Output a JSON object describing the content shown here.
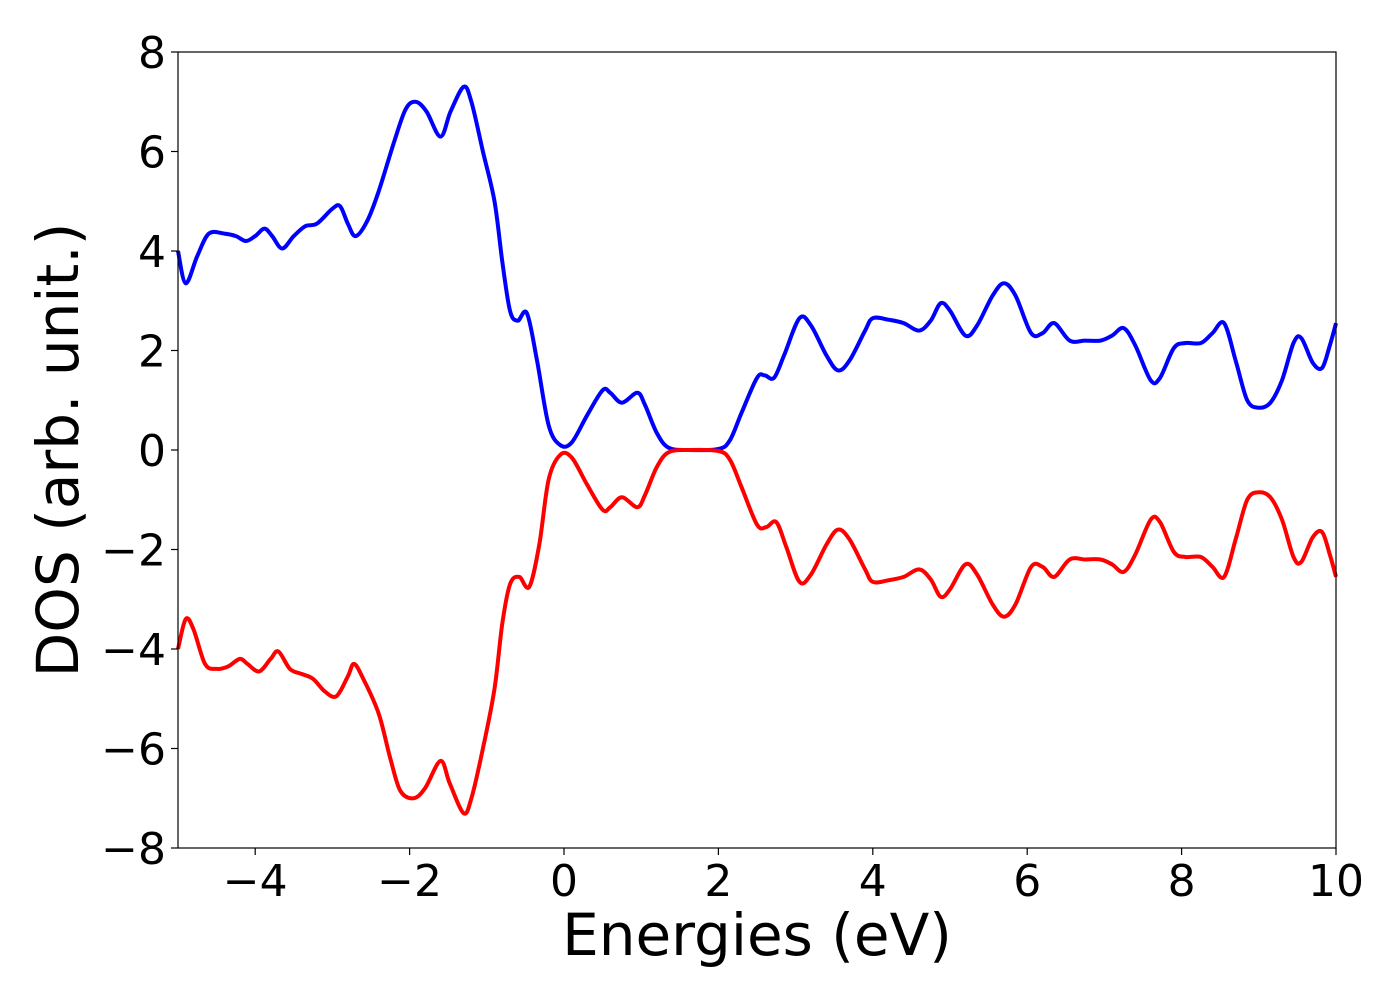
{
  "chart_data": {
    "type": "line",
    "title": "",
    "xlabel": "Energies (eV)",
    "ylabel": "DOS (arb. unit.)",
    "xlim": [
      -5,
      10
    ],
    "ylim": [
      -8,
      8
    ],
    "xticks": [
      -4,
      -2,
      0,
      2,
      4,
      6,
      8,
      10
    ],
    "xtick_labels": [
      "−4",
      "−2",
      "0",
      "2",
      "4",
      "6",
      "8",
      "10"
    ],
    "yticks": [
      -8,
      -6,
      -4,
      -2,
      0,
      2,
      4,
      6,
      8
    ],
    "ytick_labels": [
      "−8",
      "−6",
      "−4",
      "−2",
      "0",
      "2",
      "4",
      "6",
      "8"
    ],
    "grid": false,
    "legend": "none",
    "series": [
      {
        "color": "#0000ff",
        "points": [
          [
            -5.0,
            4.0
          ],
          [
            -4.9,
            3.35
          ],
          [
            -4.75,
            3.9
          ],
          [
            -4.6,
            4.35
          ],
          [
            -4.4,
            4.35
          ],
          [
            -4.25,
            4.3
          ],
          [
            -4.12,
            4.2
          ],
          [
            -4.0,
            4.3
          ],
          [
            -3.88,
            4.45
          ],
          [
            -3.78,
            4.3
          ],
          [
            -3.65,
            4.05
          ],
          [
            -3.5,
            4.3
          ],
          [
            -3.35,
            4.5
          ],
          [
            -3.2,
            4.55
          ],
          [
            -3.0,
            4.85
          ],
          [
            -2.9,
            4.9
          ],
          [
            -2.8,
            4.55
          ],
          [
            -2.7,
            4.3
          ],
          [
            -2.55,
            4.6
          ],
          [
            -2.4,
            5.2
          ],
          [
            -2.2,
            6.2
          ],
          [
            -2.05,
            6.85
          ],
          [
            -1.92,
            7.0
          ],
          [
            -1.78,
            6.8
          ],
          [
            -1.6,
            6.3
          ],
          [
            -1.47,
            6.8
          ],
          [
            -1.3,
            7.3
          ],
          [
            -1.2,
            7.0
          ],
          [
            -1.05,
            6.0
          ],
          [
            -0.9,
            5.0
          ],
          [
            -0.8,
            3.8
          ],
          [
            -0.7,
            2.8
          ],
          [
            -0.6,
            2.6
          ],
          [
            -0.48,
            2.75
          ],
          [
            -0.35,
            1.8
          ],
          [
            -0.2,
            0.5
          ],
          [
            -0.05,
            0.1
          ],
          [
            0.1,
            0.15
          ],
          [
            0.3,
            0.7
          ],
          [
            0.5,
            1.2
          ],
          [
            0.6,
            1.15
          ],
          [
            0.75,
            0.95
          ],
          [
            0.95,
            1.15
          ],
          [
            1.05,
            0.9
          ],
          [
            1.2,
            0.35
          ],
          [
            1.35,
            0.05
          ],
          [
            1.6,
            0.0
          ],
          [
            2.0,
            0.02
          ],
          [
            2.15,
            0.2
          ],
          [
            2.3,
            0.75
          ],
          [
            2.5,
            1.45
          ],
          [
            2.6,
            1.5
          ],
          [
            2.72,
            1.45
          ],
          [
            2.85,
            1.9
          ],
          [
            3.05,
            2.65
          ],
          [
            3.2,
            2.5
          ],
          [
            3.4,
            1.9
          ],
          [
            3.55,
            1.6
          ],
          [
            3.7,
            1.8
          ],
          [
            3.9,
            2.4
          ],
          [
            4.0,
            2.65
          ],
          [
            4.2,
            2.62
          ],
          [
            4.4,
            2.55
          ],
          [
            4.6,
            2.4
          ],
          [
            4.75,
            2.6
          ],
          [
            4.88,
            2.95
          ],
          [
            5.0,
            2.8
          ],
          [
            5.2,
            2.3
          ],
          [
            5.35,
            2.5
          ],
          [
            5.55,
            3.1
          ],
          [
            5.7,
            3.35
          ],
          [
            5.85,
            3.1
          ],
          [
            6.05,
            2.35
          ],
          [
            6.2,
            2.35
          ],
          [
            6.35,
            2.55
          ],
          [
            6.55,
            2.2
          ],
          [
            6.75,
            2.2
          ],
          [
            6.95,
            2.2
          ],
          [
            7.1,
            2.3
          ],
          [
            7.25,
            2.45
          ],
          [
            7.4,
            2.1
          ],
          [
            7.6,
            1.4
          ],
          [
            7.72,
            1.45
          ],
          [
            7.9,
            2.05
          ],
          [
            8.05,
            2.15
          ],
          [
            8.25,
            2.15
          ],
          [
            8.4,
            2.35
          ],
          [
            8.55,
            2.55
          ],
          [
            8.7,
            1.8
          ],
          [
            8.85,
            1.0
          ],
          [
            9.0,
            0.85
          ],
          [
            9.15,
            0.95
          ],
          [
            9.3,
            1.4
          ],
          [
            9.45,
            2.15
          ],
          [
            9.55,
            2.25
          ],
          [
            9.7,
            1.75
          ],
          [
            9.82,
            1.65
          ],
          [
            9.92,
            2.1
          ],
          [
            10.0,
            2.55
          ]
        ]
      },
      {
        "color": "#ff0000",
        "points": [
          [
            -5.0,
            -4.0
          ],
          [
            -4.9,
            -3.4
          ],
          [
            -4.8,
            -3.6
          ],
          [
            -4.65,
            -4.3
          ],
          [
            -4.5,
            -4.4
          ],
          [
            -4.35,
            -4.35
          ],
          [
            -4.2,
            -4.2
          ],
          [
            -4.1,
            -4.3
          ],
          [
            -3.95,
            -4.45
          ],
          [
            -3.8,
            -4.2
          ],
          [
            -3.7,
            -4.05
          ],
          [
            -3.55,
            -4.4
          ],
          [
            -3.4,
            -4.5
          ],
          [
            -3.25,
            -4.6
          ],
          [
            -3.1,
            -4.85
          ],
          [
            -2.95,
            -4.95
          ],
          [
            -2.8,
            -4.55
          ],
          [
            -2.72,
            -4.3
          ],
          [
            -2.6,
            -4.6
          ],
          [
            -2.4,
            -5.3
          ],
          [
            -2.25,
            -6.2
          ],
          [
            -2.12,
            -6.85
          ],
          [
            -1.95,
            -7.0
          ],
          [
            -1.8,
            -6.8
          ],
          [
            -1.6,
            -6.25
          ],
          [
            -1.48,
            -6.7
          ],
          [
            -1.3,
            -7.3
          ],
          [
            -1.2,
            -7.0
          ],
          [
            -1.05,
            -6.0
          ],
          [
            -0.9,
            -4.8
          ],
          [
            -0.8,
            -3.5
          ],
          [
            -0.7,
            -2.7
          ],
          [
            -0.58,
            -2.55
          ],
          [
            -0.45,
            -2.75
          ],
          [
            -0.32,
            -1.9
          ],
          [
            -0.2,
            -0.6
          ],
          [
            -0.05,
            -0.1
          ],
          [
            0.1,
            -0.15
          ],
          [
            0.3,
            -0.7
          ],
          [
            0.5,
            -1.2
          ],
          [
            0.6,
            -1.15
          ],
          [
            0.75,
            -0.95
          ],
          [
            0.95,
            -1.15
          ],
          [
            1.05,
            -0.9
          ],
          [
            1.2,
            -0.35
          ],
          [
            1.35,
            -0.05
          ],
          [
            1.6,
            0.0
          ],
          [
            2.0,
            -0.02
          ],
          [
            2.15,
            -0.2
          ],
          [
            2.3,
            -0.75
          ],
          [
            2.5,
            -1.5
          ],
          [
            2.62,
            -1.55
          ],
          [
            2.75,
            -1.45
          ],
          [
            2.88,
            -1.95
          ],
          [
            3.05,
            -2.65
          ],
          [
            3.2,
            -2.5
          ],
          [
            3.4,
            -1.9
          ],
          [
            3.55,
            -1.6
          ],
          [
            3.7,
            -1.8
          ],
          [
            3.9,
            -2.4
          ],
          [
            4.0,
            -2.65
          ],
          [
            4.2,
            -2.62
          ],
          [
            4.4,
            -2.55
          ],
          [
            4.6,
            -2.4
          ],
          [
            4.75,
            -2.6
          ],
          [
            4.88,
            -2.95
          ],
          [
            5.0,
            -2.8
          ],
          [
            5.2,
            -2.3
          ],
          [
            5.35,
            -2.5
          ],
          [
            5.55,
            -3.1
          ],
          [
            5.7,
            -3.35
          ],
          [
            5.85,
            -3.1
          ],
          [
            6.05,
            -2.35
          ],
          [
            6.2,
            -2.35
          ],
          [
            6.35,
            -2.55
          ],
          [
            6.55,
            -2.2
          ],
          [
            6.75,
            -2.2
          ],
          [
            6.95,
            -2.2
          ],
          [
            7.1,
            -2.3
          ],
          [
            7.25,
            -2.45
          ],
          [
            7.4,
            -2.1
          ],
          [
            7.6,
            -1.4
          ],
          [
            7.72,
            -1.45
          ],
          [
            7.9,
            -2.05
          ],
          [
            8.05,
            -2.15
          ],
          [
            8.25,
            -2.15
          ],
          [
            8.4,
            -2.35
          ],
          [
            8.55,
            -2.55
          ],
          [
            8.7,
            -1.8
          ],
          [
            8.85,
            -1.0
          ],
          [
            9.0,
            -0.85
          ],
          [
            9.15,
            -0.95
          ],
          [
            9.3,
            -1.4
          ],
          [
            9.45,
            -2.15
          ],
          [
            9.55,
            -2.25
          ],
          [
            9.7,
            -1.75
          ],
          [
            9.82,
            -1.65
          ],
          [
            9.92,
            -2.1
          ],
          [
            10.0,
            -2.55
          ]
        ]
      }
    ]
  }
}
